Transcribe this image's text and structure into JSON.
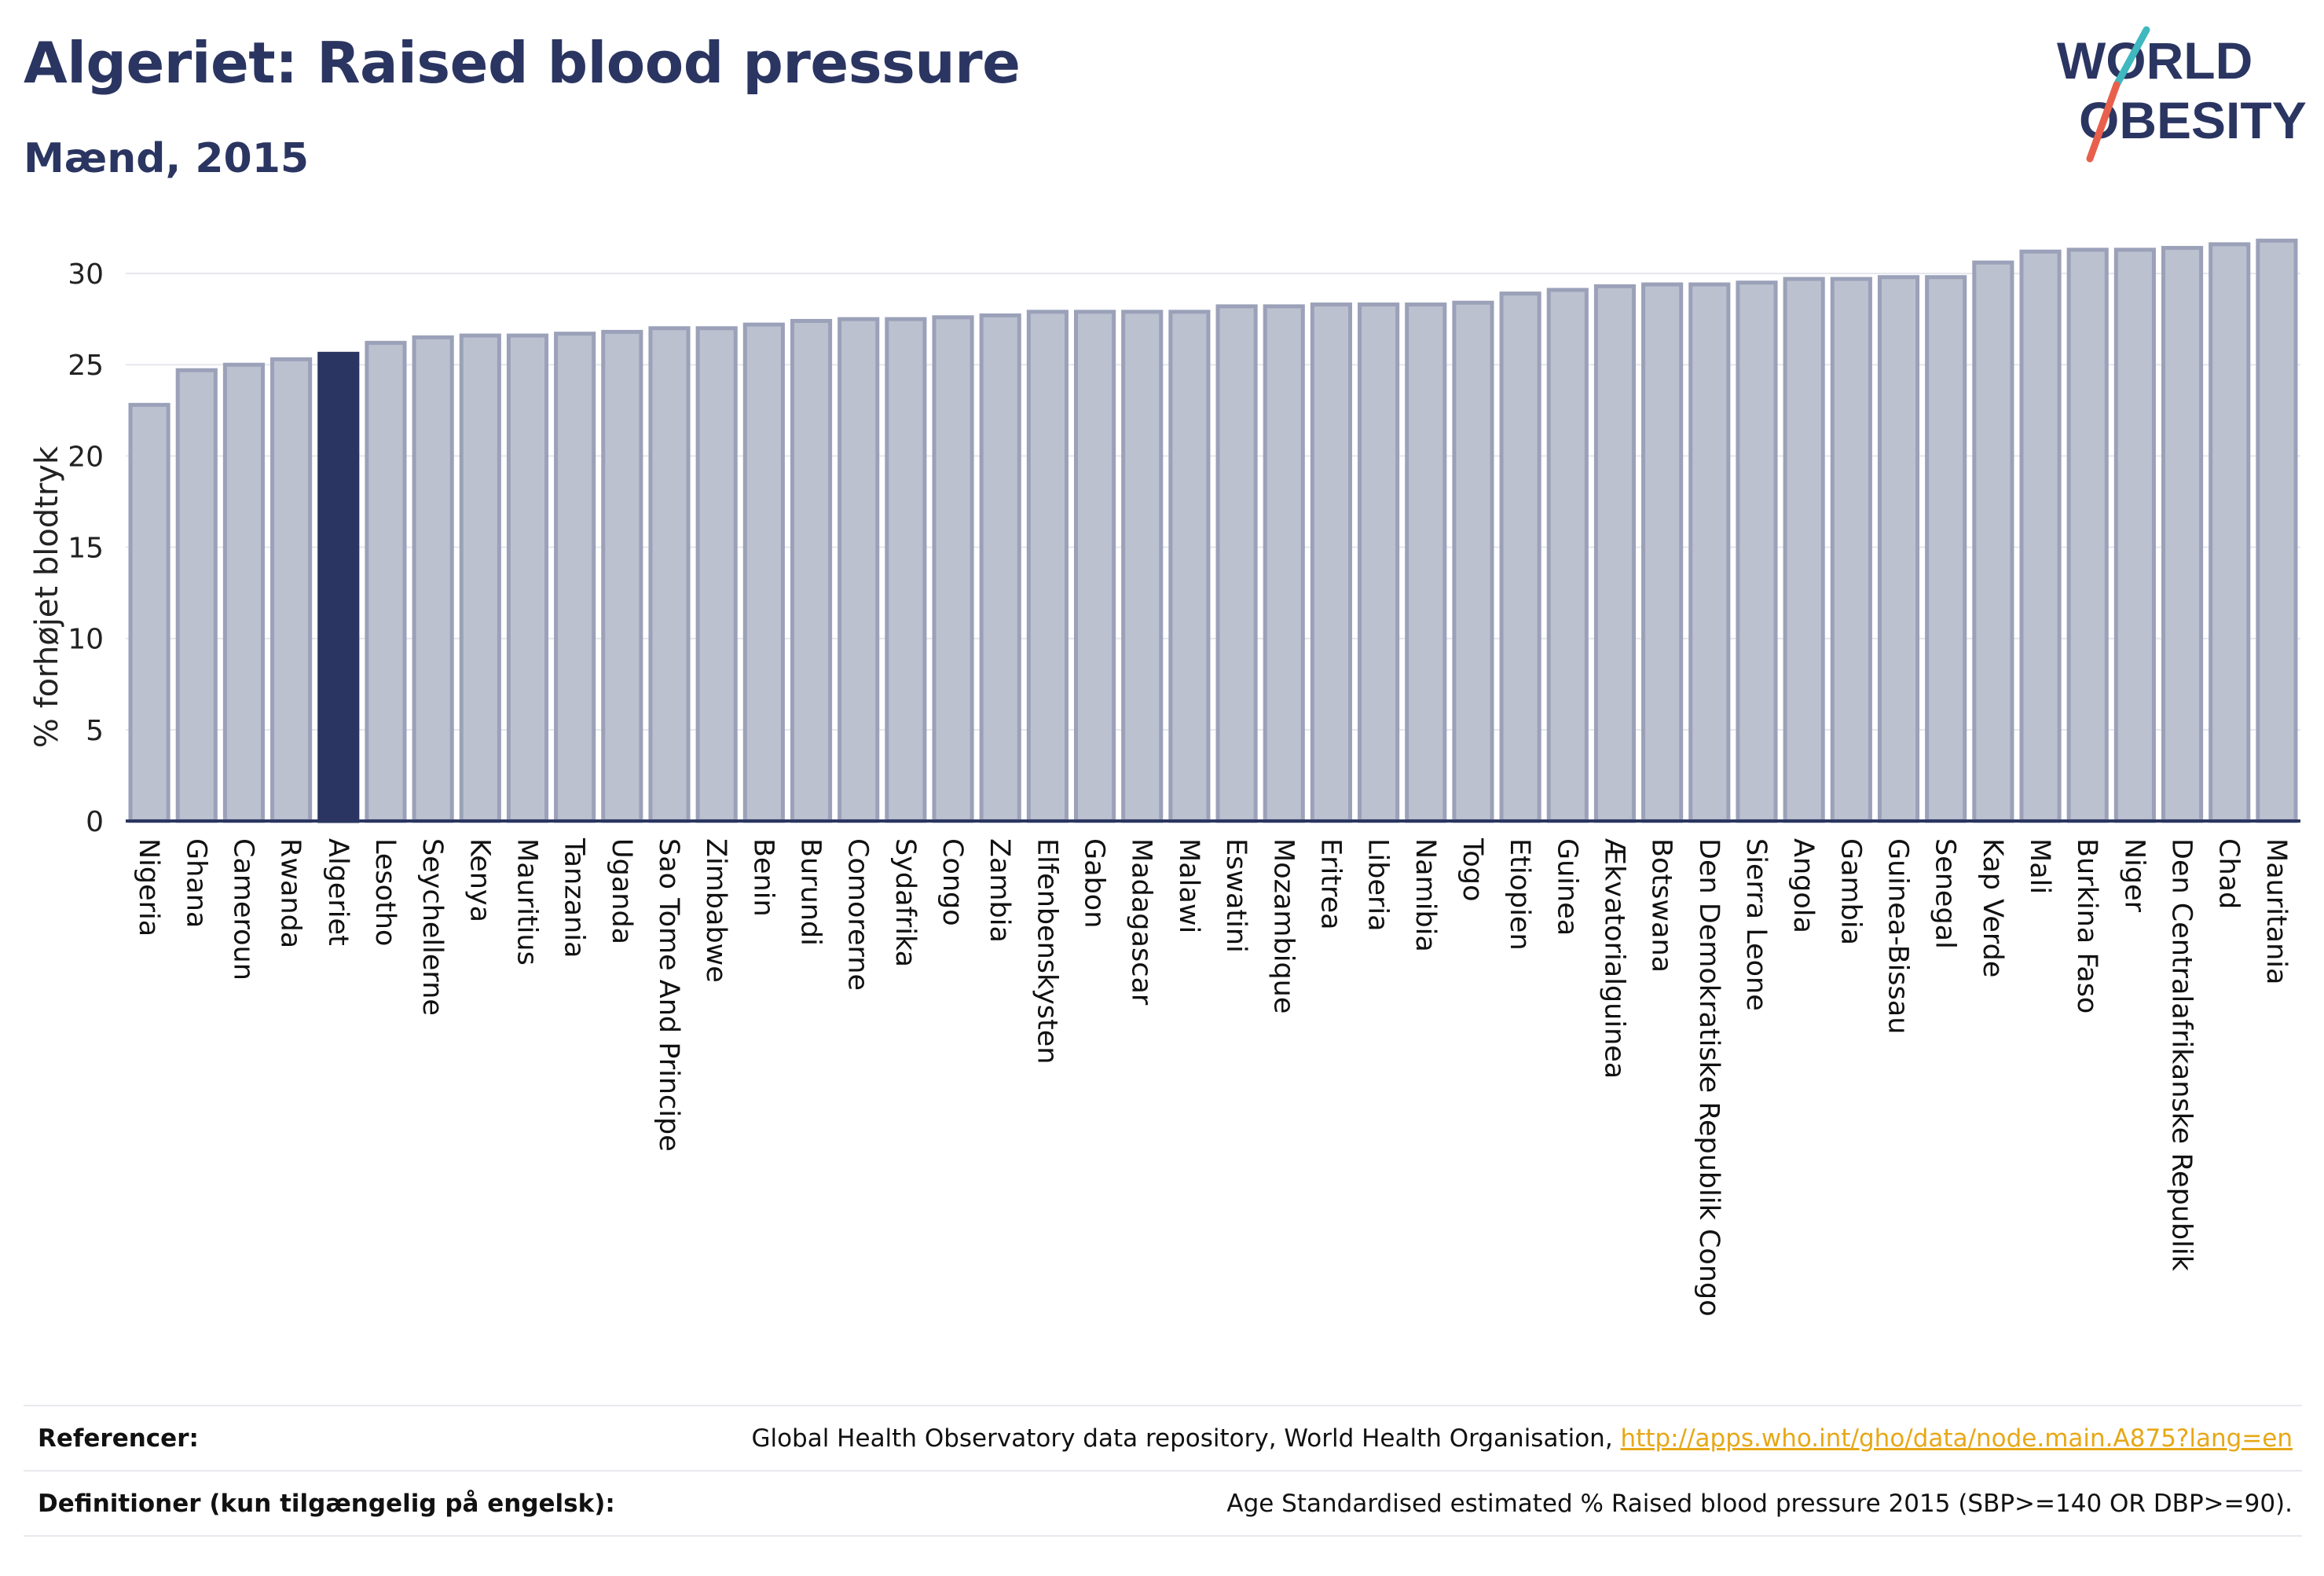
{
  "header": {
    "title": "Algeriet: Raised blood pressure",
    "subtitle": "Mænd, 2015"
  },
  "logo": {
    "line1": "WORLD",
    "line2": "OBESITY"
  },
  "colors": {
    "bar": "#bcc1d0",
    "bar_stroke": "#9aa1b8",
    "highlight": "#2b3561",
    "title": "#2b3561",
    "link": "#e6a817",
    "grid": "#e6e7ee"
  },
  "chart_data": {
    "type": "bar",
    "ylabel": "% forhøjet blodtryk",
    "ylim": [
      0,
      32.5
    ],
    "yticks": [
      0,
      5,
      10,
      15,
      20,
      25,
      30
    ],
    "grid": true,
    "highlight": "Algeriet",
    "categories": [
      "Nigeria",
      "Ghana",
      "Cameroun",
      "Rwanda",
      "Algeriet",
      "Lesotho",
      "Seychellerne",
      "Kenya",
      "Mauritius",
      "Tanzania",
      "Uganda",
      "Sao Tome And Principe",
      "Zimbabwe",
      "Benin",
      "Burundi",
      "Comorerne",
      "Sydafrika",
      "Congo",
      "Zambia",
      "Elfenbenskysten",
      "Gabon",
      "Madagascar",
      "Malawi",
      "Eswatini",
      "Mozambique",
      "Eritrea",
      "Liberia",
      "Namibia",
      "Togo",
      "Etiopien",
      "Guinea",
      "Ækvatorialguinea",
      "Botswana",
      "Den Demokratiske Republik Congo",
      "Sierra Leone",
      "Angola",
      "Gambia",
      "Guinea-Bissau",
      "Senegal",
      "Kap Verde",
      "Mali",
      "Burkina Faso",
      "Niger",
      "Den Centralafrikanske Republik",
      "Chad",
      "Mauritania"
    ],
    "values": [
      22.8,
      24.7,
      25.0,
      25.3,
      25.6,
      26.2,
      26.5,
      26.6,
      26.6,
      26.7,
      26.8,
      27.0,
      27.0,
      27.2,
      27.4,
      27.5,
      27.5,
      27.6,
      27.7,
      27.9,
      27.9,
      27.9,
      27.9,
      28.2,
      28.2,
      28.3,
      28.3,
      28.3,
      28.4,
      28.9,
      29.1,
      29.3,
      29.4,
      29.4,
      29.5,
      29.7,
      29.7,
      29.8,
      29.8,
      30.6,
      31.2,
      31.3,
      31.3,
      31.4,
      31.6,
      31.8
    ]
  },
  "footer": {
    "references_label": "Referencer:",
    "references_text": "Global Health Observatory data repository, World Health Organisation, ",
    "references_link": "http://apps.who.int/gho/data/node.main.A875?lang=en",
    "definitions_label": "Definitioner (kun tilgængelig på engelsk):",
    "definitions_text": "Age Standardised estimated % Raised blood pressure 2015 (SBP>=140 OR DBP>=90)."
  }
}
